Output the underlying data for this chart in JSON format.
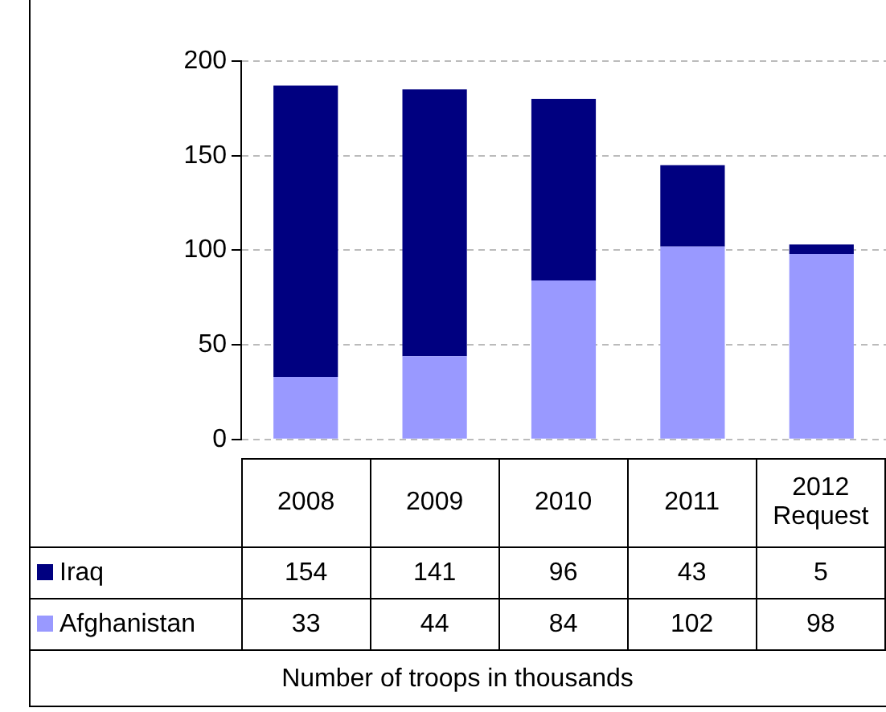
{
  "chart_data": {
    "type": "bar",
    "stacked": true,
    "annotations": [
      "Number of troops in thousands"
    ],
    "categories": [
      "2008",
      "2009",
      "2010",
      "2011",
      "2012 Request"
    ],
    "series": [
      {
        "name": "Afghanistan",
        "color": "#9999ff",
        "values": [
          33,
          44,
          84,
          102,
          98
        ]
      },
      {
        "name": "Iraq",
        "color": "#000080",
        "values": [
          154,
          141,
          96,
          43,
          5
        ]
      }
    ],
    "ylim": [
      0,
      200
    ],
    "yticks": [
      0,
      50,
      100,
      150,
      200
    ],
    "grid": "y",
    "legend": "bottom",
    "data_labels": true
  }
}
